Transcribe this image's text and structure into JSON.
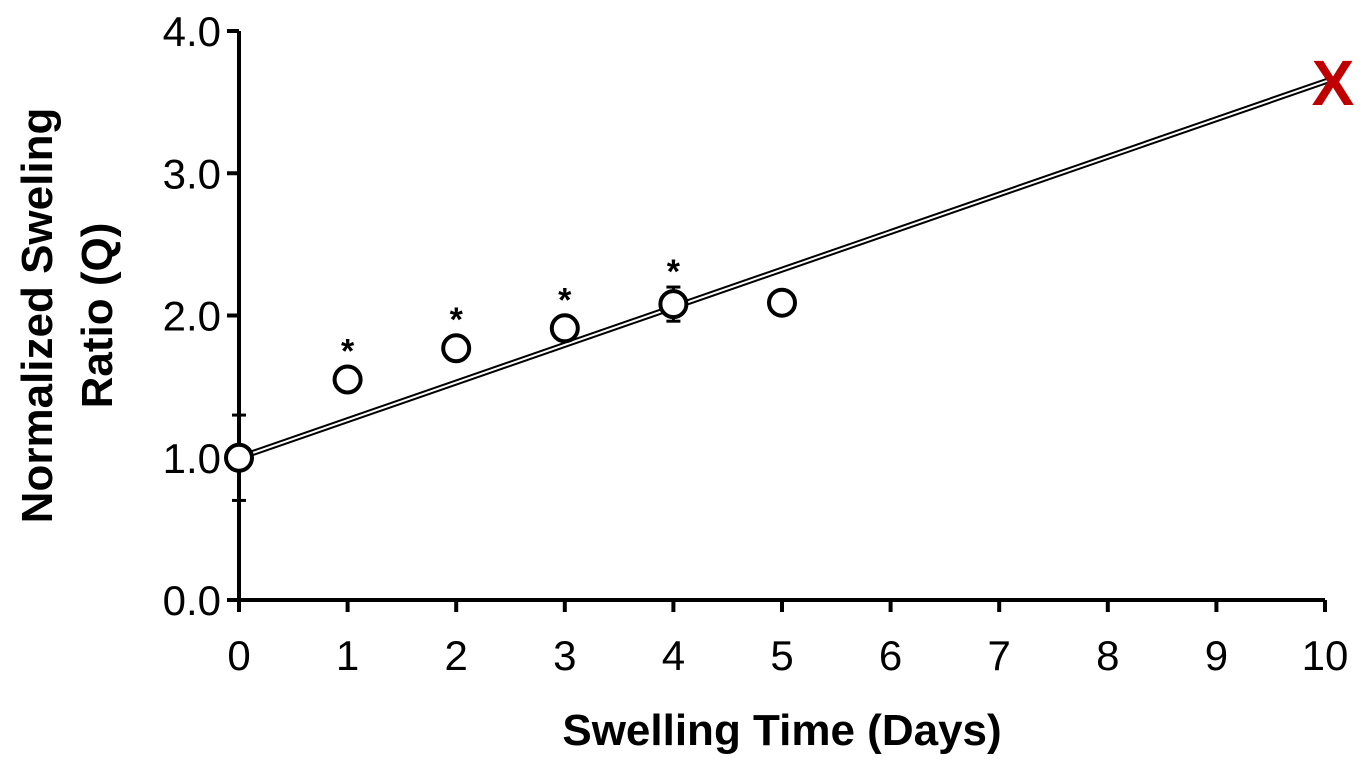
{
  "chart_data": {
    "type": "scatter",
    "title": "",
    "xlabel": "Swelling Time (Days)",
    "ylabel_lines": [
      "Normalized Sweling",
      "Ratio (Q)"
    ],
    "xlim": [
      0,
      10
    ],
    "ylim": [
      0,
      4
    ],
    "x_ticks": [
      "0",
      "1",
      "2",
      "3",
      "4",
      "5",
      "6",
      "7",
      "8",
      "9",
      "10"
    ],
    "y_ticks": [
      "0.0",
      "1.0",
      "2.0",
      "3.0",
      "4.0"
    ],
    "grid": false,
    "legend": "none",
    "series": [
      {
        "marker": "open-circle",
        "points": [
          {
            "x": 0,
            "y": 1.0,
            "err": 0.3,
            "annotation": ""
          },
          {
            "x": 1,
            "y": 1.55,
            "err": 0.05,
            "annotation": "*"
          },
          {
            "x": 2,
            "y": 1.77,
            "err": 0.05,
            "annotation": "*"
          },
          {
            "x": 3,
            "y": 1.91,
            "err": 0.08,
            "annotation": "*"
          },
          {
            "x": 4,
            "y": 2.08,
            "err": 0.12,
            "annotation": "*"
          },
          {
            "x": 5,
            "y": 2.09,
            "err": 0.03,
            "annotation": ""
          }
        ]
      }
    ],
    "trendline": {
      "x": [
        0,
        10
      ],
      "y": [
        1.0,
        3.65
      ],
      "style": "double-line"
    },
    "end_marker": {
      "x": 10,
      "y": 3.65,
      "label": "X",
      "color": "#c00000"
    }
  }
}
